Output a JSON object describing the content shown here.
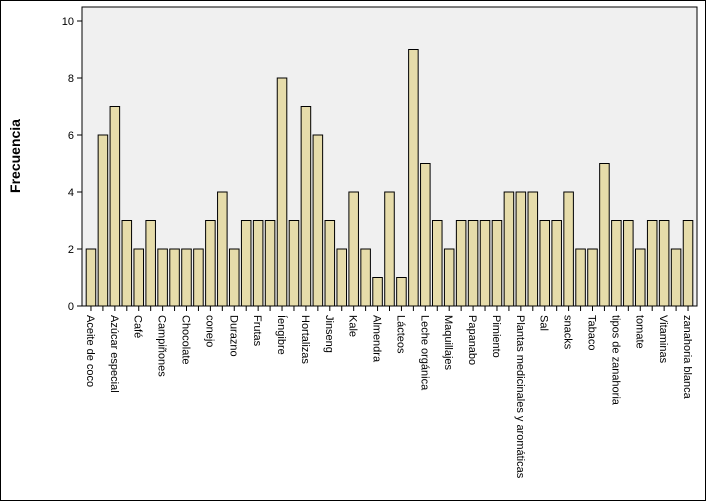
{
  "chart_data": {
    "type": "bar",
    "title": "",
    "xlabel": "",
    "ylabel": "Frecuencia",
    "ylim": [
      0,
      10
    ],
    "yticks": [
      0,
      2,
      4,
      6,
      8,
      10
    ],
    "grid": false,
    "legend": "none",
    "categories": [
      "Aceite de coco",
      "",
      "Azúcar especial",
      "",
      "Café",
      "",
      "Campiñones",
      "",
      "Chocolate",
      "",
      "conejo",
      "",
      "Durazno",
      "",
      "Frutas",
      "",
      "Íengibre",
      "",
      "Hortalizas",
      "",
      "Jinseng",
      "",
      "Kale",
      "",
      "Almendra",
      "",
      "Lácteos",
      "",
      "Leche orgánica",
      "",
      "Maquillajes",
      "",
      "Papanabo",
      "",
      "Pimiento",
      "",
      "Plantas medicinales y aromáticas",
      "",
      "Sal",
      "",
      "snacks",
      "",
      "Tabaco",
      "",
      "tipos de zanahoria",
      "",
      "tomate",
      "",
      "Vitaminas",
      "",
      "zanahoria blanca"
    ],
    "values": [
      2,
      6,
      7,
      3,
      2,
      3,
      2,
      2,
      2,
      2,
      3,
      4,
      2,
      3,
      3,
      3,
      8,
      3,
      7,
      6,
      3,
      2,
      4,
      2,
      1,
      4,
      1,
      9,
      5,
      3,
      2,
      3,
      3,
      3,
      3,
      4,
      4,
      4,
      3,
      3,
      4,
      2,
      2,
      5,
      3,
      3,
      2,
      3,
      3,
      2,
      3
    ],
    "colors": {
      "bar_fill": "#e6dcaa",
      "bar_stroke": "#000000",
      "plot_background": "#f0f0f0",
      "axis": "#000000"
    }
  }
}
